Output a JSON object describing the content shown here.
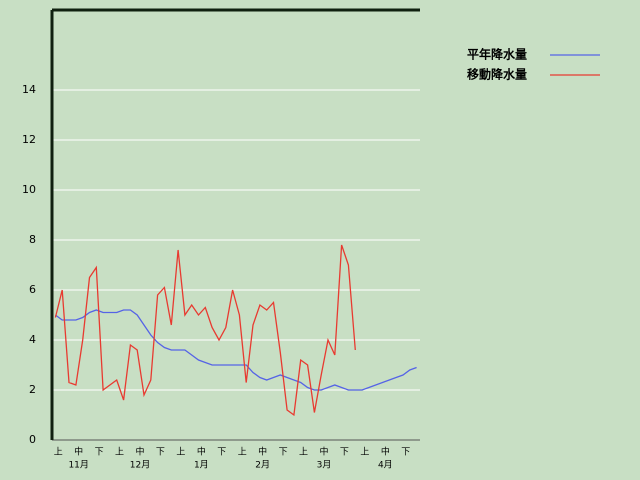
{
  "chart_data": {
    "type": "line",
    "categories": [
      null,
      "上",
      null,
      null,
      "中",
      null,
      null,
      "下",
      null,
      null,
      "上",
      null,
      null,
      "中",
      null,
      null,
      "下",
      null,
      null,
      "上",
      null,
      null,
      "中",
      null,
      null,
      "下",
      null,
      null,
      "上",
      null,
      null,
      "中",
      null,
      null,
      "下",
      null,
      null,
      "上",
      null,
      null,
      "中",
      null,
      null,
      "下",
      null,
      null,
      "上",
      null,
      null,
      "中",
      null,
      null,
      "下",
      null
    ],
    "months": [
      "11月",
      "12月",
      "1月",
      "2月",
      "3月",
      "4月"
    ],
    "series": [
      {
        "name": "平年降水量",
        "color": "#5563e6",
        "values": [
          5.0,
          4.8,
          4.8,
          4.8,
          4.9,
          5.1,
          5.2,
          5.1,
          5.1,
          5.1,
          5.2,
          5.2,
          5.0,
          4.6,
          4.2,
          3.9,
          3.7,
          3.6,
          3.6,
          3.6,
          3.4,
          3.2,
          3.1,
          3.0,
          3.0,
          3.0,
          3.0,
          3.0,
          3.0,
          2.7,
          2.5,
          2.4,
          2.5,
          2.6,
          2.5,
          2.4,
          2.3,
          2.1,
          2.0,
          2.0,
          2.1,
          2.2,
          2.1,
          2.0,
          2.0,
          2.0,
          2.1,
          2.2,
          2.3,
          2.4,
          2.5,
          2.6,
          2.8,
          2.9
        ]
      },
      {
        "name": "移動降水量",
        "color": "#e83a30",
        "values": [
          4.9,
          6.0,
          2.3,
          2.2,
          4.0,
          6.5,
          6.9,
          2.0,
          2.2,
          2.4,
          1.6,
          3.8,
          3.6,
          1.8,
          2.4,
          5.8,
          6.1,
          4.6,
          7.6,
          5.0,
          5.4,
          5.0,
          5.3,
          4.5,
          4.0,
          4.5,
          6.0,
          5.0,
          2.3,
          4.6,
          5.4,
          5.2,
          5.5,
          3.5,
          1.2,
          1.0,
          3.2,
          3.0,
          1.1,
          2.6,
          4.0,
          3.4,
          7.8,
          7.0,
          3.6,
          null,
          null,
          null,
          null,
          null,
          null,
          null,
          null,
          null
        ]
      }
    ],
    "ylim": [
      0,
      17.2
    ],
    "yticks": [
      0,
      2,
      4,
      6,
      8,
      10,
      12,
      14
    ],
    "grid": true,
    "legend": "top-right"
  }
}
